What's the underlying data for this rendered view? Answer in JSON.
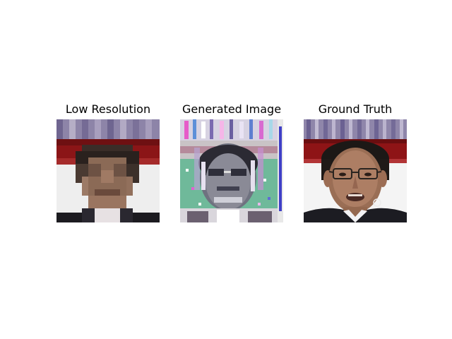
{
  "figure": {
    "panels": [
      {
        "title": "Low Resolution",
        "image": "low-resolution-face"
      },
      {
        "title": "Generated Image",
        "image": "generated-noisy-face"
      },
      {
        "title": "Ground Truth",
        "image": "high-resolution-face"
      }
    ]
  },
  "colors": {
    "background_stripes": "#8a7fa6",
    "red_band": "#8e1416",
    "wall": "#f2f2f2",
    "skin": "#8a6550",
    "hair": "#1c1816",
    "suit": "#1a1a1e",
    "generated_green": "#5fae8a",
    "generated_magenta": "#c97fd0"
  }
}
